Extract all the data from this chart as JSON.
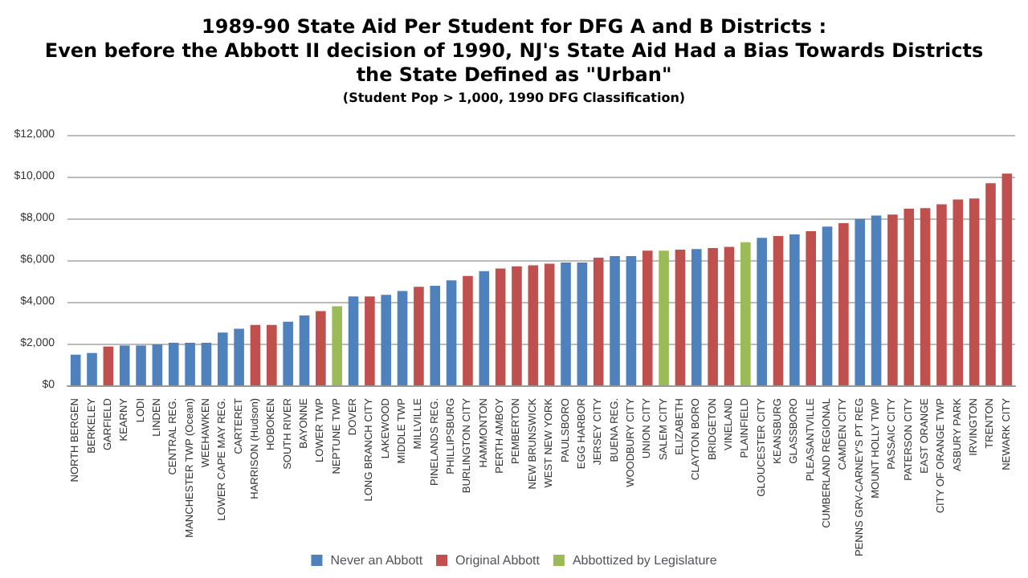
{
  "chart_data": {
    "type": "bar",
    "title": "1989-90 State Aid Per Student for DFG A and B Districts :\nEven before the Abbott II decision of 1990, NJ's State Aid Had a Bias Towards Districts\nthe State Defined as \"Urban\"",
    "subtitle": "(Student Pop > 1,000, 1990 DFG Classification)",
    "categories": [
      "NORTH BERGEN",
      "BERKELEY",
      "GARFIELD",
      "KEARNY",
      "LODI",
      "LINDEN",
      "CENTRAL REG.",
      "MANCHESTER TWP (Ocean)",
      "WEEHAWKEN",
      "LOWER CAPE MAY REG.",
      "CARTERET",
      "HARRISON (Hudson)",
      "HOBOKEN",
      "SOUTH RIVER",
      "BAYONNE",
      "LOWER TWP",
      "NEPTUNE TWP",
      "DOVER",
      "LONG BRANCH CITY",
      "LAKEWOOD",
      "MIDDLE TWP",
      "MILLVILLE",
      "PINELANDS REG.",
      "PHILLIPSBURG",
      "BURLINGTON CITY",
      "HAMMONTON",
      "PERTH AMBOY",
      "PEMBERTON",
      "NEW BRUNSWICK",
      "WEST NEW YORK",
      "PAULSBORO",
      "EGG HARBOR",
      "JERSEY CITY",
      "BUENA REG.",
      "WOODBURY CITY",
      "UNION CITY",
      "SALEM CITY",
      "ELIZABETH",
      "CLAYTON BORO",
      "BRIDGETON",
      "VINELAND",
      "PLAINFIELD",
      "GLOUCESTER CITY",
      "KEANSBURG",
      "GLASSBORO",
      "PLEASANTVILLE",
      "CUMBERLAND REGIONAL",
      "CAMDEN CITY",
      "PENNS GRV-CARNEY'S PT REG",
      "MOUNT HOLLY TWP",
      "PASSAIC CITY",
      "PATERSON CITY",
      "EAST ORANGE",
      "CITY OF ORANGE TWP",
      "ASBURY PARK",
      "IRVINGTON",
      "TRENTON",
      "NEWARK CITY"
    ],
    "series": [
      {
        "name": "Never an Abbott",
        "color": "#4f81bd",
        "values": [
          1470,
          1550,
          null,
          1910,
          1910,
          1960,
          2040,
          2040,
          2040,
          2530,
          2710,
          null,
          null,
          3050,
          3350,
          null,
          null,
          4260,
          null,
          4340,
          4520,
          null,
          4770,
          5030,
          null,
          5470,
          null,
          null,
          null,
          null,
          5880,
          5880,
          null,
          6190,
          6190,
          null,
          null,
          null,
          6530,
          null,
          null,
          null,
          7070,
          null,
          7230,
          null,
          7610,
          null,
          7970,
          8130,
          null,
          null,
          null,
          null,
          null,
          null,
          null,
          null
        ]
      },
      {
        "name": "Original Abbott",
        "color": "#c0504d",
        "values": [
          null,
          null,
          1860,
          null,
          null,
          null,
          null,
          null,
          null,
          null,
          null,
          2890,
          2890,
          null,
          null,
          3560,
          null,
          null,
          4260,
          null,
          null,
          4720,
          null,
          null,
          5240,
          null,
          5600,
          5700,
          5750,
          5830,
          null,
          null,
          6120,
          null,
          null,
          6450,
          null,
          6500,
          null,
          6580,
          6630,
          null,
          null,
          7150,
          null,
          7380,
          null,
          7770,
          null,
          null,
          8180,
          8460,
          8490,
          8670,
          8900,
          8950,
          9680,
          10140
        ]
      },
      {
        "name": "Abbottized by Legislature",
        "color": "#9bbb59",
        "values": [
          null,
          null,
          null,
          null,
          null,
          null,
          null,
          null,
          null,
          null,
          null,
          null,
          null,
          null,
          null,
          null,
          3790,
          null,
          null,
          null,
          null,
          null,
          null,
          null,
          null,
          null,
          null,
          null,
          null,
          null,
          null,
          null,
          null,
          null,
          null,
          null,
          6450,
          null,
          null,
          null,
          null,
          6860,
          null,
          null,
          null,
          null,
          null,
          null,
          null,
          null,
          null,
          null,
          null,
          null,
          null,
          null,
          null,
          null
        ]
      }
    ],
    "ylim": [
      0,
      12000
    ],
    "yticks": [
      {
        "value": 0,
        "label": "$0"
      },
      {
        "value": 2000,
        "label": "$2,000"
      },
      {
        "value": 4000,
        "label": "$4,000"
      },
      {
        "value": 6000,
        "label": "$6,000"
      },
      {
        "value": 8000,
        "label": "$8,000"
      },
      {
        "value": 10000,
        "label": "$10,000"
      },
      {
        "value": 12000,
        "label": "$12,000"
      }
    ],
    "grid": "y",
    "legend": "bottom"
  }
}
